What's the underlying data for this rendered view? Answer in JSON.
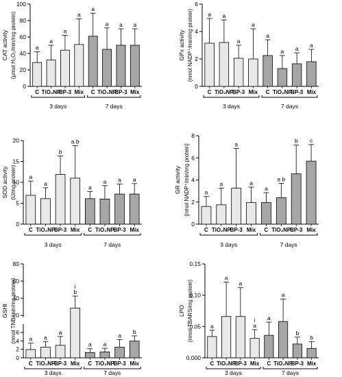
{
  "chart_data": [
    {
      "type": "bar",
      "panel": "cat",
      "ylabel": "CAT activity",
      "ylabel2": "(µmol H₂O₂/min/mg protein)",
      "ylim": [
        0,
        100
      ],
      "yticks": [
        0,
        20,
        40,
        60,
        80,
        100
      ],
      "categories": [
        "C",
        "TiO₂NP",
        "BP-3",
        "Mix",
        "C",
        "TiO₂NP",
        "BP-3",
        "Mix"
      ],
      "groups": [
        "3 days",
        "7 days"
      ],
      "values": [
        29,
        32,
        44,
        51,
        61,
        45,
        50,
        50
      ],
      "errors": [
        13,
        18,
        18,
        31,
        28,
        26,
        20,
        20
      ],
      "letters": [
        "a",
        "a",
        "a",
        "a",
        "a",
        "a",
        "a",
        "a"
      ]
    },
    {
      "type": "bar",
      "panel": "gpx",
      "ylabel": "GPx activity",
      "ylabel2": "(nmol NADP⁺/min/mg protein)",
      "ylim": [
        0,
        6
      ],
      "yticks": [
        0,
        2,
        4,
        6
      ],
      "categories": [
        "C",
        "TiO₂NP",
        "BP-3",
        "Mix",
        "C",
        "TiO₂NP",
        "BP-3",
        "Mix"
      ],
      "groups": [
        "3 days",
        "7 days"
      ],
      "values": [
        3.15,
        3.2,
        2.05,
        2.0,
        2.25,
        1.3,
        1.65,
        1.8
      ],
      "errors": [
        1.8,
        1.65,
        0.95,
        2.2,
        1.15,
        0.95,
        0.8,
        0.9
      ],
      "letters": [
        "a",
        "a",
        "a",
        "a",
        "a",
        "a",
        "a",
        "a"
      ]
    },
    {
      "type": "bar",
      "panel": "sod",
      "ylabel": "SOD activity",
      "ylabel2": "(U/mg protein)",
      "ylim": [
        0,
        20
      ],
      "yticks": [
        0,
        5,
        10,
        15,
        20
      ],
      "categories": [
        "C",
        "TiO₂NP",
        "BP-3",
        "Mix",
        "C",
        "TiO₂NP",
        "BP-3",
        "Mix"
      ],
      "groups": [
        "3 days",
        "7 days"
      ],
      "values": [
        6.9,
        6.1,
        11.9,
        11.0,
        6.1,
        6.0,
        7.2,
        7.2
      ],
      "errors": [
        3.4,
        2.6,
        4.4,
        7.8,
        1.7,
        3.2,
        2.4,
        2.5
      ],
      "letters": [
        "a",
        "a",
        "b",
        "a b",
        "a",
        "a",
        "a",
        "a"
      ]
    },
    {
      "type": "bar",
      "panel": "gr",
      "ylabel": "GR activity",
      "ylabel2": "(nmol NADP⁺/min/mg protein)",
      "ylim": [
        0,
        8
      ],
      "yticks": [
        0,
        2,
        4,
        6,
        8
      ],
      "categories": [
        "C",
        "TiO₂NP",
        "BP-3",
        "Mix",
        "C",
        "TiO₂NP",
        "BP-3",
        "Mix"
      ],
      "groups": [
        "3 days",
        "7 days"
      ],
      "values": [
        1.6,
        1.75,
        3.25,
        1.95,
        1.95,
        2.4,
        4.55,
        5.7
      ],
      "errors": [
        0.9,
        1.5,
        3.6,
        1.4,
        0.9,
        1.3,
        2.6,
        1.5
      ],
      "letters": [
        "a",
        "a",
        "a",
        "a",
        "a",
        "a b",
        "b",
        "c"
      ]
    },
    {
      "type": "bar",
      "panel": "gsht",
      "ylabel": "GSHt",
      "ylabel2": "(nmol TNB/min/mg protein)",
      "ylim": [
        0,
        80
      ],
      "axis_break": [
        8,
        18
      ],
      "yticks": [
        0,
        2,
        4,
        6,
        20,
        40,
        60,
        80
      ],
      "categories": [
        "C",
        "TiO₂NP",
        "BP-3",
        "Mix",
        "C",
        "TiO₂NP",
        "BP-3",
        "Mix"
      ],
      "groups": [
        "3 days",
        "7 days"
      ],
      "values": [
        1.95,
        2.5,
        2.95,
        28.5,
        1.25,
        1.4,
        2.5,
        3.95
      ],
      "errors": [
        1.5,
        1.35,
        2.1,
        14,
        0.9,
        0.85,
        1.8,
        1.25
      ],
      "letters": [
        "a",
        "a",
        "a",
        "b",
        "a",
        "a",
        "a",
        "b"
      ],
      "extra_marks": [
        "",
        "",
        "",
        "i",
        "",
        "",
        "",
        ""
      ]
    },
    {
      "type": "bar",
      "panel": "lpo",
      "ylabel": "LPO",
      "ylabel2": "(nmol TBARS/mg protein)",
      "ylim": [
        0,
        0.15
      ],
      "yticks": [
        0.0,
        0.05,
        0.1,
        0.15
      ],
      "ytick_labels": [
        "0.000",
        "0.05",
        "0.10",
        "0.15"
      ],
      "categories": [
        "C",
        "TiO₂NP",
        "BP-3",
        "Mix",
        "C",
        "TiO₂NP",
        "BP-3",
        "Mix"
      ],
      "groups": [
        "3 days",
        "7 days"
      ],
      "values": [
        0.034,
        0.066,
        0.066,
        0.031,
        0.036,
        0.058,
        0.022,
        0.015
      ],
      "errors": [
        0.01,
        0.055,
        0.046,
        0.014,
        0.021,
        0.036,
        0.011,
        0.011
      ],
      "letters": [
        "a",
        "a",
        "a",
        "a",
        "a",
        "a",
        "b",
        "b"
      ],
      "extra_marks": [
        "",
        "",
        "",
        "i",
        "",
        "",
        "",
        ""
      ]
    }
  ],
  "colors": {
    "bar_3days": "#e8e8e8",
    "bar_7days": "#a6a6a6",
    "stroke": "#000000"
  }
}
